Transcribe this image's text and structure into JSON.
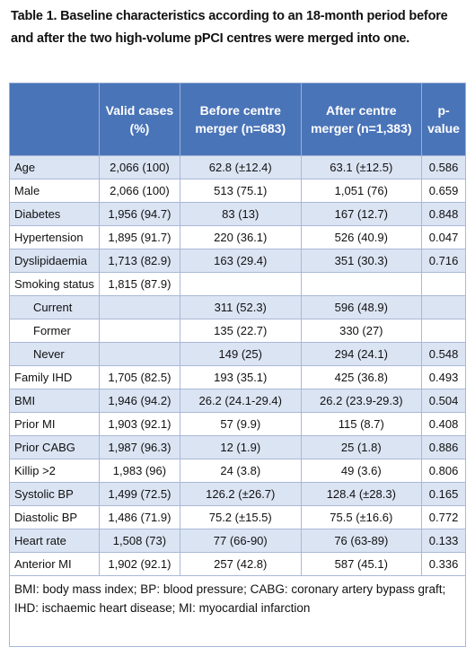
{
  "title": "Table 1. Baseline characteristics according to an 18-month period before and after the two high-volume pPCI centres were merged into one.",
  "table": {
    "header": [
      "",
      "Valid cases (%)",
      "Before centre merger (n=683)",
      "After centre merger (n=1,383)",
      "p-value"
    ],
    "rows": [
      [
        "Age",
        "2,066 (100)",
        "62.8 (±12.4)",
        "63.1 (±12.5)",
        "0.586"
      ],
      [
        "Male",
        "2,066 (100)",
        "513 (75.1)",
        "1,051 (76)",
        "0.659"
      ],
      [
        "Diabetes",
        "1,956 (94.7)",
        "83 (13)",
        "167 (12.7)",
        "0.848"
      ],
      [
        "Hypertension",
        "1,895 (91.7)",
        "220 (36.1)",
        "526 (40.9)",
        "0.047"
      ],
      [
        "Dyslipidaemia",
        "1,713 (82.9)",
        "163 (29.4)",
        "351 (30.3)",
        "0.716"
      ],
      [
        "Smoking status",
        "1,815 (87.9)",
        null,
        null,
        null
      ],
      [
        "Current",
        null,
        "311 (52.3)",
        "596 (48.9)",
        null
      ],
      [
        "Former",
        null,
        "135 (22.7)",
        "330 (27)",
        null
      ],
      [
        "Never",
        null,
        "149 (25)",
        "294 (24.1)",
        "0.548"
      ],
      [
        "Family IHD",
        "1,705 (82.5)",
        "193 (35.1)",
        "425 (36.8)",
        "0.493"
      ],
      [
        "BMI",
        "1,946 (94.2)",
        "26.2 (24.1-29.4)",
        "26.2 (23.9-29.3)",
        "0.504"
      ],
      [
        "Prior MI",
        "1,903 (92.1)",
        "57 (9.9)",
        "115 (8.7)",
        "0.408"
      ],
      [
        "Prior CABG",
        "1,987 (96.3)",
        "12 (1.9)",
        "25 (1.8)",
        "0.886"
      ],
      [
        "Killip >2",
        "1,983 (96)",
        "24 (3.8)",
        "49 (3.6)",
        "0.806"
      ],
      [
        "Systolic BP",
        "1,499 (72.5)",
        "126.2 (±26.7)",
        "128.4 (±28.3)",
        "0.165"
      ],
      [
        "Diastolic BP",
        "1,486 (71.9)",
        "75.2 (±15.5)",
        "75.5 (±16.6)",
        "0.772"
      ],
      [
        "Heart rate",
        "1,508 (73)",
        "77 (66-90)",
        "76 (63-89)",
        "0.133"
      ],
      [
        "Anterior MI",
        "1,902 (92.1)",
        "257 (42.8)",
        "587 (45.1)",
        "0.336"
      ]
    ]
  },
  "footnote": "BMI: body mass index; BP: blood pressure; CABG: coronary artery bypass graft; IHD: ischaemic heart disease; MI: myocardial infarction"
}
